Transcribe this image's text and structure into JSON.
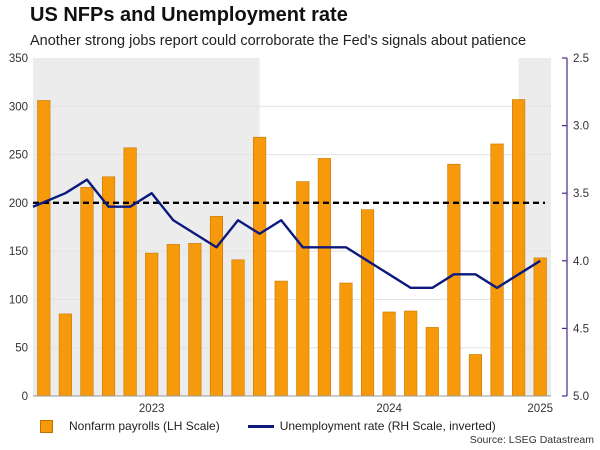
{
  "chart_data": {
    "type": "bar",
    "title": "US NFPs and Unemployment rate",
    "subtitle": "Another strong jobs report could corroborate the Fed's signals about patience",
    "source": "Source: LSEG Datastream",
    "left_axis": {
      "label": "Nonfarm payrolls (LH Scale)",
      "ylim": [
        0,
        350
      ],
      "ticks": [
        "0",
        "50",
        "100",
        "150",
        "200",
        "250",
        "300",
        "350"
      ]
    },
    "right_axis": {
      "label": "Unemployment rate (RH Scale, inverted)",
      "ylim": [
        2.5,
        5.0
      ],
      "inverted": true,
      "ticks": [
        "2.5",
        "3.0",
        "3.5",
        "4.0",
        "4.5",
        "5.0"
      ]
    },
    "x_labels": [
      "2023",
      "2024",
      "2025"
    ],
    "reference_line": 200,
    "series": [
      {
        "name": "Nonfarm payrolls (LH Scale)",
        "type": "bar",
        "color": "#f6990a",
        "values": [
          306,
          85,
          216,
          227,
          257,
          148,
          157,
          158,
          186,
          141,
          268,
          119,
          222,
          246,
          117,
          193,
          87,
          88,
          71,
          240,
          43,
          261,
          307,
          143
        ]
      },
      {
        "name": "Unemployment rate (RH Scale, inverted)",
        "type": "line",
        "color": "#0c1a7e",
        "values": [
          3.6,
          3.5,
          3.4,
          3.6,
          3.6,
          3.5,
          3.7,
          3.8,
          3.9,
          3.7,
          3.8,
          3.7,
          3.9,
          3.9,
          3.9,
          4.0,
          4.1,
          4.2,
          4.2,
          4.1,
          4.1,
          4.2,
          4.1,
          4.0
        ]
      }
    ]
  },
  "legend": {
    "bars": "Nonfarm payrolls (LH Scale)",
    "line": "Unemployment rate (RH Scale, inverted)"
  }
}
